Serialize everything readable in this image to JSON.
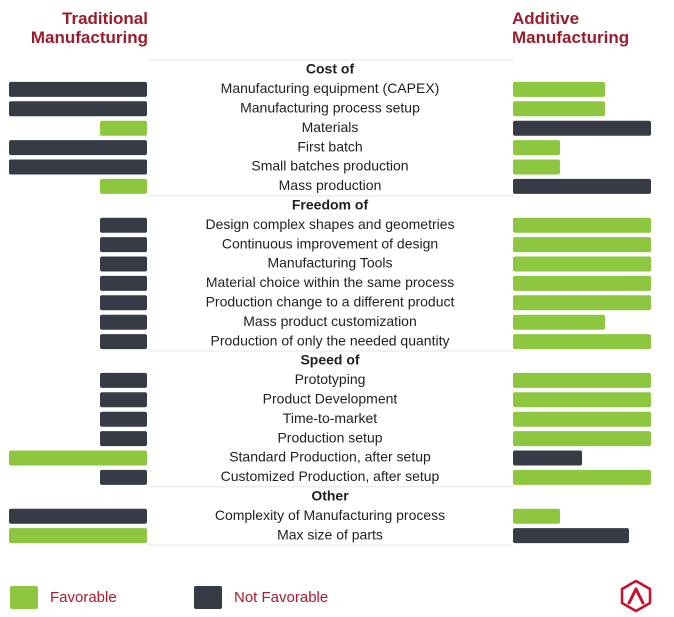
{
  "colors": {
    "favorable": "#8dc63f",
    "not_favorable": "#363b45",
    "header_text": "#9b1c2c",
    "legend_text": "#b0182e",
    "label_text": "#1f1f1f"
  },
  "headers": {
    "left": "Traditional Manufacturing",
    "right": "Additive Manufacturing"
  },
  "legend": {
    "favorable_label": "Favorable",
    "not_favorable_label": "Not Favorable"
  },
  "logo": {
    "icon": "triangle-logo-icon"
  },
  "chart_data": {
    "type": "bar",
    "title": "",
    "series": [
      {
        "name": "Traditional Manufacturing",
        "direction": "left"
      },
      {
        "name": "Additive Manufacturing",
        "direction": "right"
      }
    ],
    "value_scale": "relative length, 1 = full bar",
    "groups": [
      {
        "name": "Cost of",
        "rows": [
          {
            "label": "Manufacturing equipment (CAPEX)",
            "traditional": 1.0,
            "traditional_favorable": false,
            "additive": 0.67,
            "additive_favorable": true
          },
          {
            "label": "Manufacturing process setup",
            "traditional": 1.0,
            "traditional_favorable": false,
            "additive": 0.67,
            "additive_favorable": true
          },
          {
            "label": "Materials",
            "traditional": 0.34,
            "traditional_favorable": true,
            "additive": 1.0,
            "additive_favorable": false
          },
          {
            "label": "First batch",
            "traditional": 1.0,
            "traditional_favorable": false,
            "additive": 0.34,
            "additive_favorable": true
          },
          {
            "label": "Small batches production",
            "traditional": 1.0,
            "traditional_favorable": false,
            "additive": 0.34,
            "additive_favorable": true
          },
          {
            "label": "Mass production",
            "traditional": 0.34,
            "traditional_favorable": true,
            "additive": 1.0,
            "additive_favorable": false
          }
        ]
      },
      {
        "name": "Freedom of",
        "rows": [
          {
            "label": "Design complex shapes and geometries",
            "traditional": 0.34,
            "traditional_favorable": false,
            "additive": 1.0,
            "additive_favorable": true
          },
          {
            "label": "Continuous improvement of design",
            "traditional": 0.34,
            "traditional_favorable": false,
            "additive": 1.0,
            "additive_favorable": true
          },
          {
            "label": "Manufacturing Tools",
            "traditional": 0.34,
            "traditional_favorable": false,
            "additive": 1.0,
            "additive_favorable": true
          },
          {
            "label": "Material choice within the same process",
            "traditional": 0.34,
            "traditional_favorable": false,
            "additive": 1.0,
            "additive_favorable": true
          },
          {
            "label": "Production change to a different product",
            "traditional": 0.34,
            "traditional_favorable": false,
            "additive": 1.0,
            "additive_favorable": true
          },
          {
            "label": "Mass product customization",
            "traditional": 0.34,
            "traditional_favorable": false,
            "additive": 0.67,
            "additive_favorable": true
          },
          {
            "label": "Production of only the needed quantity",
            "traditional": 0.34,
            "traditional_favorable": false,
            "additive": 1.0,
            "additive_favorable": true
          }
        ]
      },
      {
        "name": "Speed of",
        "rows": [
          {
            "label": "Prototyping",
            "traditional": 0.34,
            "traditional_favorable": false,
            "additive": 1.0,
            "additive_favorable": true
          },
          {
            "label": "Product Development",
            "traditional": 0.34,
            "traditional_favorable": false,
            "additive": 1.0,
            "additive_favorable": true
          },
          {
            "label": "Time-to-market",
            "traditional": 0.34,
            "traditional_favorable": false,
            "additive": 1.0,
            "additive_favorable": true
          },
          {
            "label": "Production setup",
            "traditional": 0.34,
            "traditional_favorable": false,
            "additive": 1.0,
            "additive_favorable": true
          },
          {
            "label": "Standard Production, after setup",
            "traditional": 1.0,
            "traditional_favorable": true,
            "additive": 0.5,
            "additive_favorable": false
          },
          {
            "label": "Customized Production, after setup",
            "traditional": 0.34,
            "traditional_favorable": false,
            "additive": 1.0,
            "additive_favorable": true
          }
        ]
      },
      {
        "name": "Other",
        "rows": [
          {
            "label": "Complexity of Manufacturing process",
            "traditional": 1.0,
            "traditional_favorable": false,
            "additive": 0.34,
            "additive_favorable": true
          },
          {
            "label": "Max size of parts",
            "traditional": 1.0,
            "traditional_favorable": true,
            "additive": 0.84,
            "additive_favorable": false
          }
        ]
      }
    ]
  }
}
